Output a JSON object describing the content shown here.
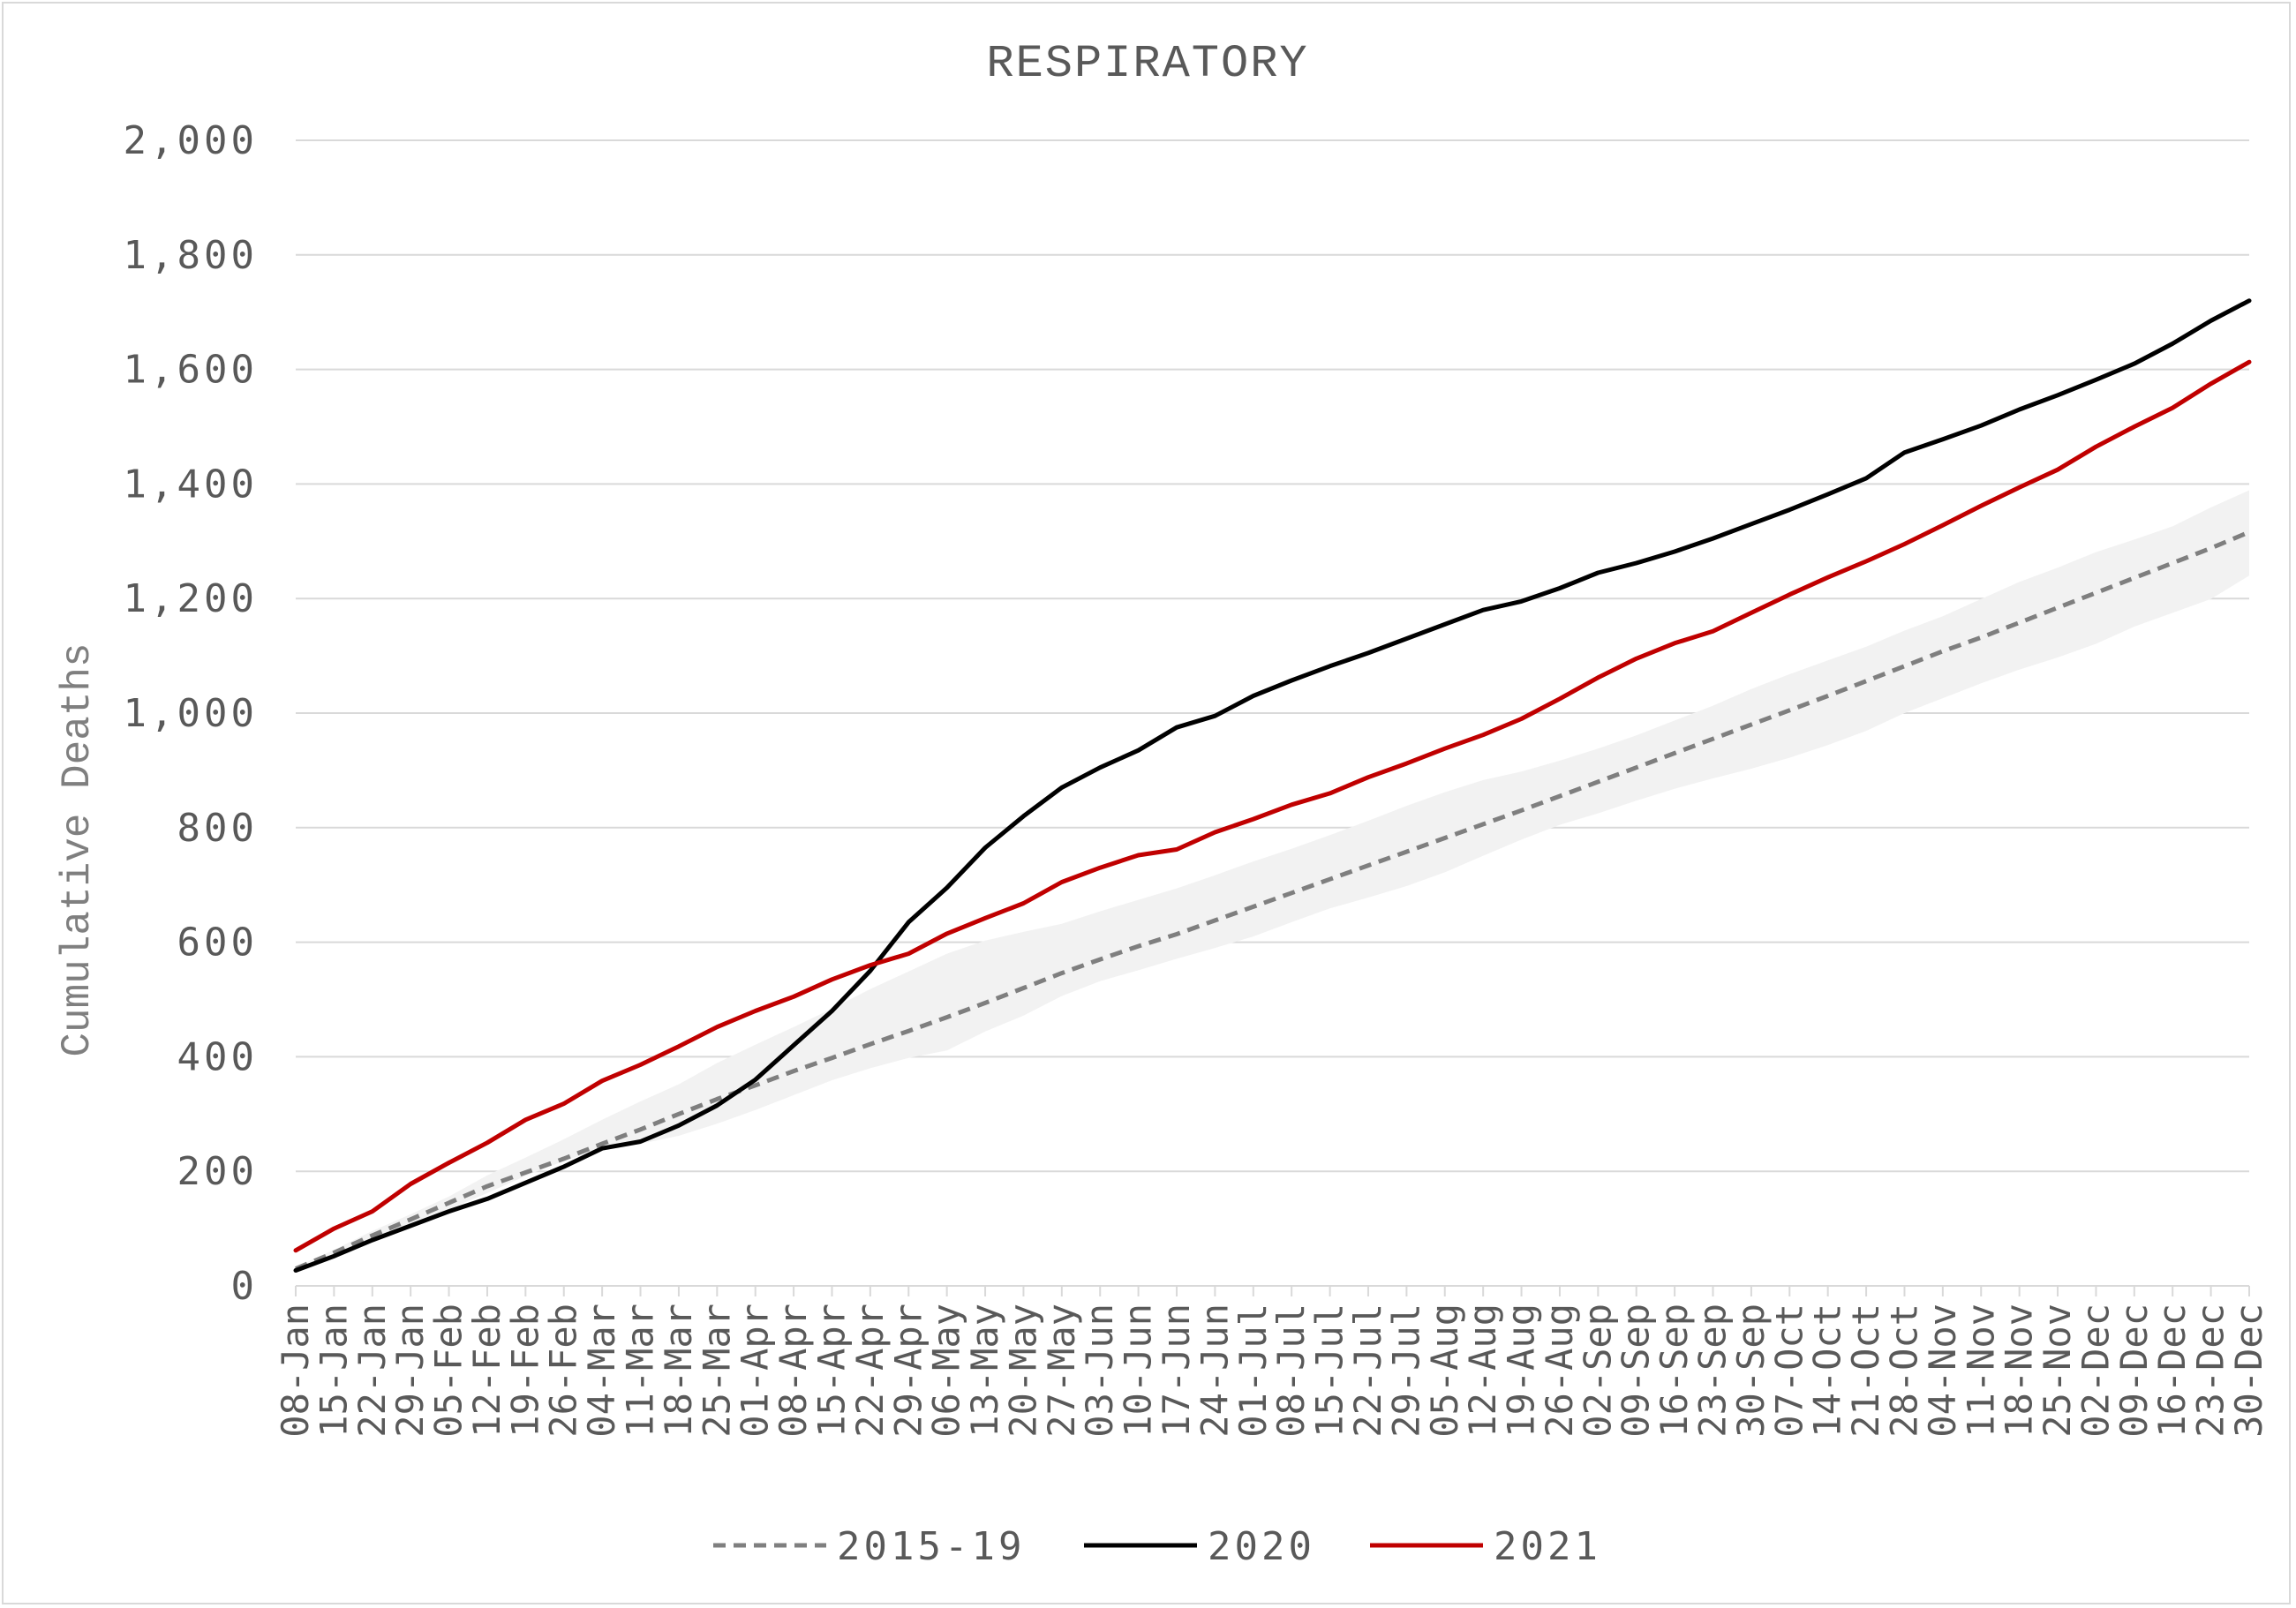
{
  "chart_data": {
    "type": "line",
    "title": "RESPIRATORY",
    "ylabel": "Cumulative Deaths",
    "xlabel": "",
    "ylim": [
      0,
      2000
    ],
    "yticks": [
      "0",
      "200",
      "400",
      "600",
      "800",
      "1,000",
      "1,200",
      "1,400",
      "1,600",
      "1,800",
      "2,000"
    ],
    "ytick_values": [
      0,
      200,
      400,
      600,
      800,
      1000,
      1200,
      1400,
      1600,
      1800,
      2000
    ],
    "grid": true,
    "legend_position": "bottom",
    "categories": [
      "08-Jan",
      "15-Jan",
      "22-Jan",
      "29-Jan",
      "05-Feb",
      "12-Feb",
      "19-Feb",
      "26-Feb",
      "04-Mar",
      "11-Mar",
      "18-Mar",
      "25-Mar",
      "01-Apr",
      "08-Apr",
      "15-Apr",
      "22-Apr",
      "29-Apr",
      "06-May",
      "13-May",
      "20-May",
      "27-May",
      "03-Jun",
      "10-Jun",
      "17-Jun",
      "24-Jun",
      "01-Jul",
      "08-Jul",
      "15-Jul",
      "22-Jul",
      "29-Jul",
      "05-Aug",
      "12-Aug",
      "19-Aug",
      "26-Aug",
      "02-Sep",
      "09-Sep",
      "16-Sep",
      "23-Sep",
      "30-Sep",
      "07-Oct",
      "14-Oct",
      "21-Oct",
      "28-Oct",
      "04-Nov",
      "11-Nov",
      "18-Nov",
      "25-Nov",
      "02-Dec",
      "09-Dec",
      "16-Dec",
      "23-Dec",
      "30-Dec"
    ],
    "band": {
      "color": "#f2f2f2",
      "upper": [
        33,
        63,
        96,
        125,
        156,
        193,
        224,
        256,
        290,
        322,
        352,
        389,
        421,
        452,
        484,
        518,
        549,
        580,
        603,
        618,
        632,
        654,
        674,
        694,
        717,
        741,
        763,
        787,
        812,
        838,
        862,
        883,
        898,
        917,
        938,
        961,
        987,
        1013,
        1042,
        1068,
        1092,
        1116,
        1144,
        1169,
        1199,
        1229,
        1254,
        1281,
        1303,
        1326,
        1359,
        1389
      ],
      "lower": [
        26,
        52,
        82,
        109,
        134,
        162,
        192,
        218,
        240,
        248,
        262,
        283,
        307,
        333,
        359,
        380,
        398,
        411,
        444,
        472,
        506,
        532,
        551,
        571,
        590,
        610,
        635,
        659,
        678,
        698,
        722,
        751,
        779,
        805,
        825,
        847,
        868,
        886,
        903,
        922,
        944,
        969,
        1000,
        1026,
        1052,
        1076,
        1097,
        1121,
        1151,
        1175,
        1199,
        1240
      ]
    },
    "series": [
      {
        "name": "2015-19",
        "color": "#7f7f7f",
        "dashed": true,
        "values": [
          30,
          58,
          88,
          116,
          145,
          174,
          198,
          222,
          248,
          273,
          300,
          326,
          350,
          375,
          398,
          422,
          445,
          469,
          494,
          520,
          546,
          570,
          593,
          614,
          638,
          662,
          686,
          710,
          734,
          758,
          782,
          806,
          830,
          855,
          880,
          905,
          930,
          955,
          980,
          1005,
          1030,
          1056,
          1082,
          1108,
          1132,
          1158,
          1184,
          1210,
          1236,
          1262,
          1288,
          1316
        ]
      },
      {
        "name": "2020",
        "color": "#000000",
        "dashed": false,
        "values": [
          27,
          52,
          80,
          105,
          130,
          152,
          180,
          208,
          240,
          252,
          280,
          315,
          360,
          420,
          480,
          550,
          635,
          695,
          765,
          820,
          870,
          905,
          935,
          975,
          995,
          1030,
          1057,
          1082,
          1105,
          1130,
          1155,
          1180,
          1195,
          1218,
          1245,
          1262,
          1282,
          1305,
          1330,
          1355,
          1382,
          1410,
          1455,
          1478,
          1502,
          1530,
          1555,
          1582,
          1610,
          1645,
          1685,
          1720
        ]
      },
      {
        "name": "2021",
        "color": "#c00000",
        "dashed": false,
        "values": [
          62,
          100,
          130,
          178,
          215,
          250,
          290,
          318,
          358,
          386,
          418,
          452,
          480,
          505,
          535,
          560,
          580,
          615,
          642,
          668,
          705,
          730,
          752,
          762,
          792,
          815,
          840,
          860,
          888,
          912,
          938,
          962,
          990,
          1025,
          1062,
          1095,
          1122,
          1143,
          1175,
          1207,
          1237,
          1265,
          1295,
          1328,
          1362,
          1394,
          1425,
          1465,
          1500,
          1533,
          1575,
          1613
        ]
      }
    ]
  }
}
